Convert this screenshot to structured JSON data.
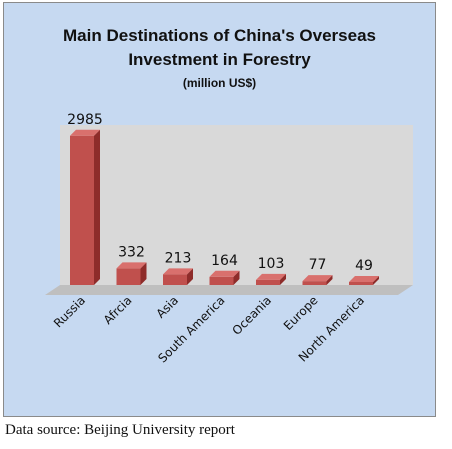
{
  "chart_data": {
    "type": "bar",
    "title_line1": "Main Destinations of China's Overseas",
    "title_line2": "Investment in Forestry",
    "subtitle": "(million US$)",
    "categories": [
      "Russia",
      "Afrcia",
      "Asia",
      "South America",
      "Oceania",
      "Europe",
      "North America"
    ],
    "values": [
      2985,
      332,
      213,
      164,
      103,
      77,
      49
    ],
    "data_labels": [
      "2985",
      "332",
      "213",
      "164",
      "103",
      "77",
      "49"
    ],
    "ylim": [
      0,
      3000
    ],
    "grid": false,
    "legend": "none",
    "bar_color": "#c0504d",
    "bar_side_color": "#8e2c2a",
    "bar_top_color": "#d9706d",
    "plot_bg": "#d9d9d9",
    "frame_bg": "#c6d9f1"
  },
  "source_text": "Data source: Beijing University report"
}
